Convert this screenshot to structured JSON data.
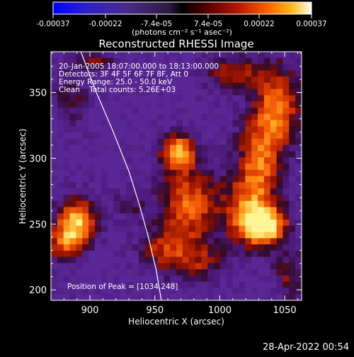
{
  "chart_data": {
    "type": "heatmap",
    "title": "Reconstructed RHESSI Image",
    "xlabel": "Heliocentric X (arcsec)",
    "ylabel": "Heliocentric Y (arcsec)",
    "xlim": [
      870,
      1063
    ],
    "ylim": [
      192,
      381
    ],
    "xticks": [
      900,
      950,
      1000,
      1050
    ],
    "yticks": [
      200,
      250,
      300,
      350
    ],
    "xtick_labels": [
      "900",
      "950",
      "1000",
      "1050"
    ],
    "ytick_labels": [
      "200",
      "250",
      "300",
      "350"
    ],
    "colorbar": {
      "range": [
        -0.00037,
        0.00037
      ],
      "tick_values": [
        -0.00037,
        -0.00022,
        -7.4e-05,
        7.4e-05,
        0.00022,
        0.00037
      ],
      "tick_labels": [
        "-0.00037",
        "-0.00022",
        "-7.4e-05",
        "7.4e-05",
        "0.00022",
        "0.00037"
      ],
      "units_label": "(photons cm⁻² s⁻¹ asec⁻²)"
    },
    "annotations": [
      "20-Jan-2005 18:07:00.000 to 18:13:00.000",
      "Detectors: 3F 4F 5F 6F 7F 8F, Att 0",
      "Energy Range: 25.0 - 50.0 keV",
      "Clean    Total counts: 5.26E+03"
    ],
    "peak_label": "Position of Peak = [1034,248]",
    "peak_position": [
      1034,
      248
    ],
    "sources": [
      {
        "x": 1034,
        "y": 248,
        "sx": 12,
        "sy": 10,
        "amp": 1.0
      },
      {
        "x": 1022,
        "y": 262,
        "sx": 15,
        "sy": 18,
        "amp": 0.55
      },
      {
        "x": 1030,
        "y": 300,
        "sx": 12,
        "sy": 22,
        "amp": 0.6
      },
      {
        "x": 1045,
        "y": 340,
        "sx": 12,
        "sy": 22,
        "amp": 0.7
      },
      {
        "x": 1010,
        "y": 365,
        "sx": 15,
        "sy": 10,
        "amp": 0.45
      },
      {
        "x": 975,
        "y": 265,
        "sx": 16,
        "sy": 20,
        "amp": 0.65
      },
      {
        "x": 968,
        "y": 305,
        "sx": 9,
        "sy": 9,
        "amp": 0.85
      },
      {
        "x": 958,
        "y": 230,
        "sx": 14,
        "sy": 12,
        "amp": 0.45
      },
      {
        "x": 985,
        "y": 220,
        "sx": 14,
        "sy": 12,
        "amp": 0.35
      },
      {
        "x": 890,
        "y": 252,
        "sx": 11,
        "sy": 12,
        "amp": 0.85
      },
      {
        "x": 880,
        "y": 235,
        "sx": 10,
        "sy": 10,
        "amp": 0.55
      },
      {
        "x": 885,
        "y": 348,
        "sx": 10,
        "sy": 16,
        "amp": 0.28
      },
      {
        "x": 905,
        "y": 375,
        "sx": 10,
        "sy": 6,
        "amp": 0.3
      },
      {
        "x": 930,
        "y": 265,
        "sx": 8,
        "sy": 8,
        "amp": 0.25
      },
      {
        "x": 1055,
        "y": 210,
        "sx": 10,
        "sy": 12,
        "amp": 0.35
      }
    ],
    "limb_curve": [
      [
        893,
        381
      ],
      [
        905,
        350
      ],
      [
        918,
        320
      ],
      [
        930,
        290
      ],
      [
        938,
        265
      ],
      [
        945,
        240
      ],
      [
        951,
        215
      ],
      [
        955,
        192
      ]
    ]
  },
  "footer": {
    "timestamp": "28-Apr-2022 00:54"
  }
}
